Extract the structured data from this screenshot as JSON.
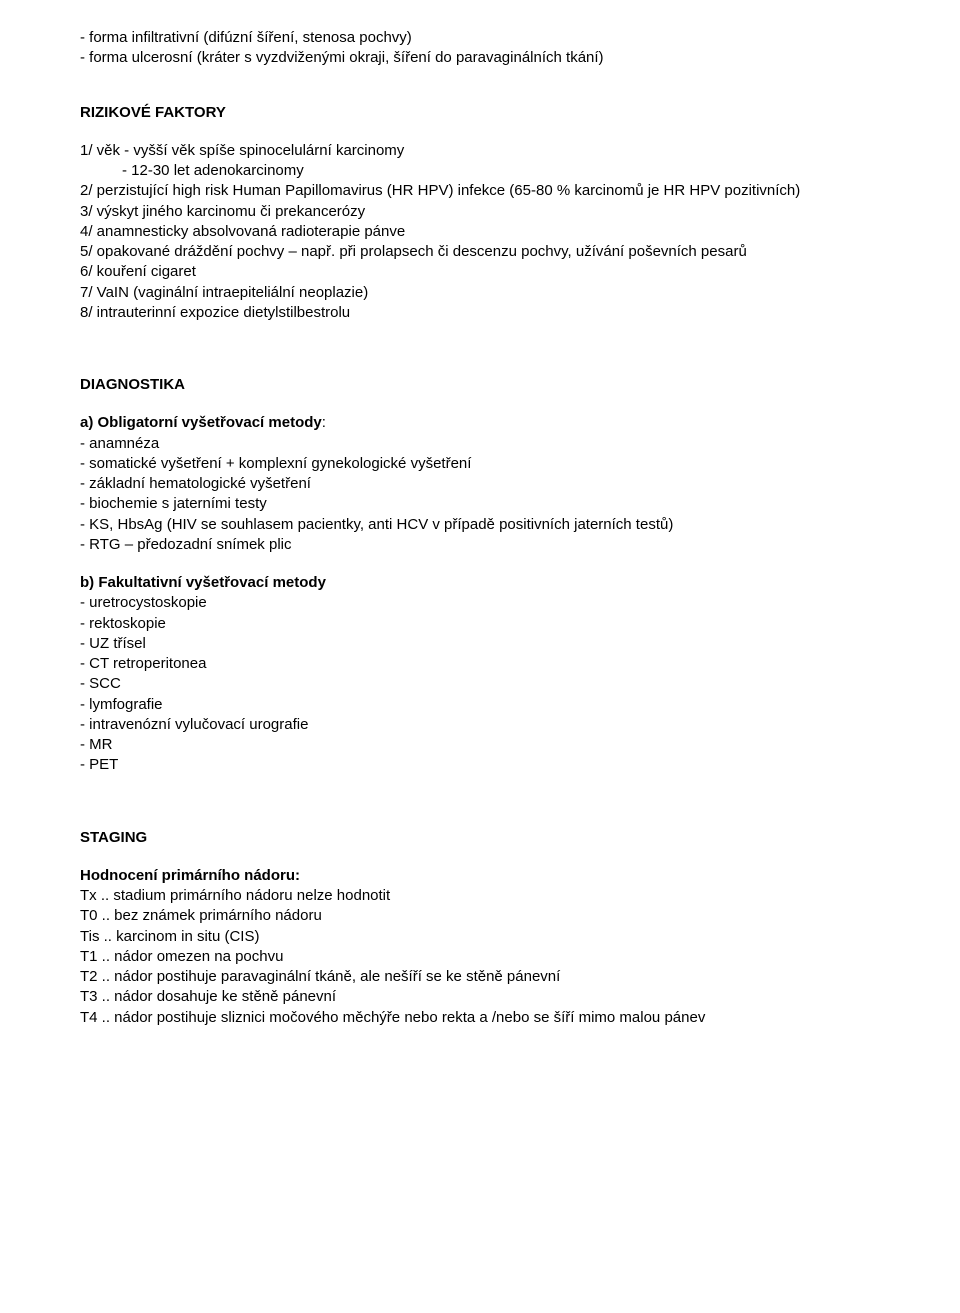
{
  "intro_lines": [
    "- forma infiltrativní (difúzní šíření, stenosa pochvy)",
    "- forma ulcerosní (kráter s vyzdviženými okraji, šíření do paravaginálních tkání)"
  ],
  "risk": {
    "heading": "RIZIKOVÉ FAKTORY",
    "items": [
      "1/ věk - vyšší věk spíše spinocelulární karcinomy",
      "2/ perzistující high risk Human Papillomavirus (HR HPV) infekce (65-80 % karcinomů je HR HPV pozitivních)",
      "3/ výskyt jiného karcinomu či prekancerózy",
      "4/ anamnesticky absolvovaná radioterapie pánve",
      "5/ opakované dráždění pochvy – např. při prolapsech či descenzu pochvy, užívání poševních pesarů",
      "6/ kouření cigaret",
      "7/ VaIN (vaginální intraepiteliální neoplazie)",
      "8/ intrauterinní expozice dietylstilbestrolu"
    ],
    "indent_line": "- 12-30 let adenokarcinomy"
  },
  "diag": {
    "heading": "DIAGNOSTIKA",
    "a_heading": "a) Obligatorní vyšetřovací metody",
    "a_colon": ":",
    "a_items": [
      "- anamnéza",
      "- somatické vyšetření + komplexní gynekologické vyšetření",
      "- základní hematologické vyšetření",
      "- biochemie s jaterními testy",
      "- KS, HbsAg (HIV se souhlasem pacientky, anti HCV v případě positivních jaterních testů)",
      "- RTG – předozadní snímek plic"
    ],
    "b_heading": "b) Fakultativní vyšetřovací metody",
    "b_items": [
      "- uretrocystoskopie",
      "- rektoskopie",
      "- UZ třísel",
      "- CT retroperitonea",
      "- SCC",
      "- lymfografie",
      "- intravenózní vylučovací urografie",
      "- MR",
      "- PET"
    ]
  },
  "staging": {
    "heading": "STAGING",
    "subheading": "Hodnocení primárního nádoru:",
    "items": [
      "Tx .. stadium primárního nádoru nelze hodnotit",
      "T0 .. bez známek primárního nádoru",
      "Tis .. karcinom in situ (CIS)",
      "T1 .. nádor omezen na pochvu",
      "T2 .. nádor postihuje paravaginální tkáně, ale nešíří se ke stěně pánevní",
      "T3 .. nádor dosahuje ke stěně pánevní",
      "T4 .. nádor postihuje sliznici močového měchýře nebo rekta a /nebo se šíří mimo malou pánev"
    ]
  }
}
